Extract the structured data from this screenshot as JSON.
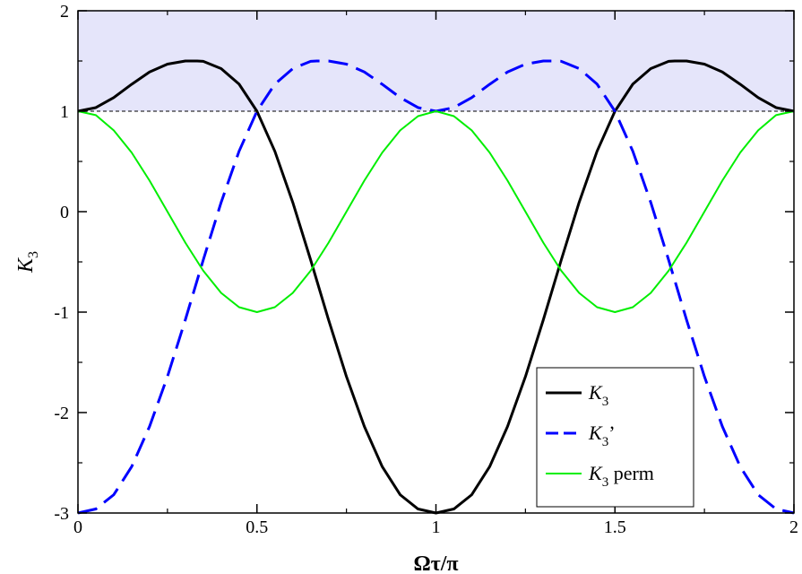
{
  "chart_data": {
    "type": "line",
    "xlabel": "Ωτ/π",
    "ylabel_main": "K",
    "ylabel_sub": "3",
    "xlim": [
      0,
      2
    ],
    "ylim": [
      -3,
      2
    ],
    "x_ticks": [
      0,
      0.5,
      1,
      1.5,
      2
    ],
    "x_tick_labels": [
      "0",
      "0.5",
      "1",
      "1.5",
      "2"
    ],
    "y_ticks": [
      -3,
      -2,
      -1,
      0,
      1,
      2
    ],
    "y_tick_labels": [
      "-3",
      "-2",
      "-1",
      "0",
      "1",
      "2"
    ],
    "grid": false,
    "reference_line": {
      "y": 1,
      "style": "dashed",
      "color": "#000000"
    },
    "shaded_region": {
      "y_from": 1,
      "y_to": 2,
      "color": "#e5e5fa"
    },
    "legend_position": "bottom-right",
    "series": [
      {
        "legend_main": "K",
        "legend_sub": "3",
        "legend_suffix": "",
        "color": "#000000",
        "style": "solid",
        "x": [
          0,
          0.05,
          0.1,
          0.15,
          0.2,
          0.25,
          0.3,
          0.333,
          0.35,
          0.4,
          0.45,
          0.5,
          0.55,
          0.6,
          0.65,
          0.7,
          0.75,
          0.8,
          0.85,
          0.9,
          0.95,
          1,
          1.05,
          1.1,
          1.15,
          1.2,
          1.25,
          1.3,
          1.35,
          1.4,
          1.45,
          1.5,
          1.55,
          1.6,
          1.65,
          1.667,
          1.7,
          1.75,
          1.8,
          1.85,
          1.9,
          1.95,
          2
        ],
        "y": [
          1.0,
          1.036,
          1.136,
          1.268,
          1.391,
          1.469,
          1.5,
          1.5,
          1.497,
          1.424,
          1.27,
          1.0,
          0.601,
          0.093,
          -0.481,
          -1.076,
          -1.642,
          -2.138,
          -2.539,
          -2.818,
          -2.96,
          -3.0,
          -2.96,
          -2.818,
          -2.539,
          -2.138,
          -1.642,
          -1.076,
          -0.481,
          0.093,
          0.601,
          1.0,
          1.27,
          1.424,
          1.497,
          1.5,
          1.5,
          1.469,
          1.391,
          1.268,
          1.136,
          1.036,
          1.0
        ]
      },
      {
        "legend_main": "K",
        "legend_sub": "3",
        "legend_suffix": "’",
        "color": "#0000ff",
        "style": "dashed",
        "x": [
          0,
          0.05,
          0.1,
          0.15,
          0.2,
          0.25,
          0.3,
          0.35,
          0.4,
          0.45,
          0.5,
          0.55,
          0.6,
          0.65,
          0.667,
          0.7,
          0.75,
          0.8,
          0.85,
          0.9,
          0.95,
          1,
          1.05,
          1.1,
          1.15,
          1.2,
          1.25,
          1.3,
          1.333,
          1.35,
          1.4,
          1.45,
          1.5,
          1.55,
          1.6,
          1.65,
          1.7,
          1.75,
          1.8,
          1.85,
          1.9,
          1.95,
          2
        ],
        "y": [
          -3.0,
          -2.96,
          -2.818,
          -2.539,
          -2.138,
          -1.642,
          -1.076,
          -0.481,
          0.093,
          0.601,
          1.0,
          1.27,
          1.424,
          1.497,
          1.5,
          1.5,
          1.469,
          1.391,
          1.268,
          1.136,
          1.036,
          1.0,
          1.036,
          1.136,
          1.268,
          1.391,
          1.469,
          1.5,
          1.5,
          1.497,
          1.424,
          1.27,
          1.0,
          0.601,
          0.093,
          -0.481,
          -1.076,
          -1.642,
          -2.138,
          -2.539,
          -2.818,
          -2.96,
          -3.0
        ]
      },
      {
        "legend_main": "K",
        "legend_sub": "3",
        "legend_suffix": " perm",
        "color": "#00ee00",
        "style": "solid",
        "x": [
          0,
          0.05,
          0.1,
          0.15,
          0.2,
          0.25,
          0.3,
          0.35,
          0.4,
          0.45,
          0.5,
          0.55,
          0.6,
          0.65,
          0.7,
          0.75,
          0.8,
          0.85,
          0.9,
          0.95,
          1,
          1.05,
          1.1,
          1.15,
          1.2,
          1.25,
          1.3,
          1.35,
          1.4,
          1.45,
          1.5,
          1.55,
          1.6,
          1.65,
          1.7,
          1.75,
          1.8,
          1.85,
          1.9,
          1.95,
          2
        ],
        "y": [
          1.0,
          0.961,
          0.809,
          0.588,
          0.309,
          0.0,
          -0.309,
          -0.588,
          -0.809,
          -0.951,
          -1.0,
          -0.951,
          -0.809,
          -0.588,
          -0.309,
          0.0,
          0.309,
          0.588,
          0.809,
          0.951,
          1.0,
          0.951,
          0.809,
          0.588,
          0.309,
          0.0,
          -0.309,
          -0.588,
          -0.809,
          -0.951,
          -1.0,
          -0.951,
          -0.809,
          -0.588,
          -0.309,
          0.0,
          0.309,
          0.588,
          0.809,
          0.961,
          1.0
        ]
      }
    ]
  }
}
